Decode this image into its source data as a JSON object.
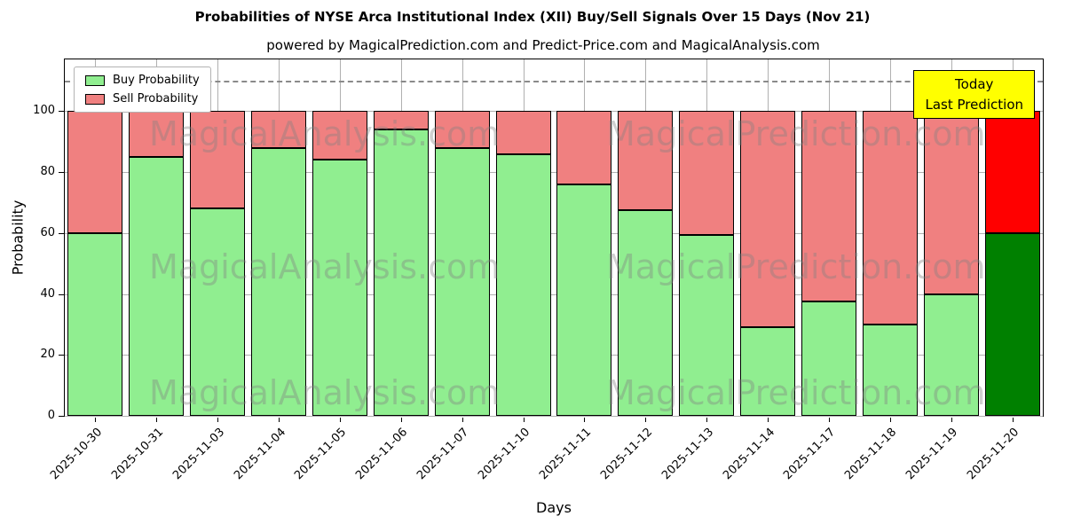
{
  "title": "Probabilities of NYSE Arca Institutional Index (XII) Buy/Sell Signals Over 15 Days (Nov 21)",
  "subtitle": "powered by MagicalPrediction.com and Predict-Price.com and MagicalAnalysis.com",
  "annotation": {
    "line1": "Today",
    "line2": "Last Prediction"
  },
  "legend": [
    {
      "label": "Buy Probability",
      "color": "#90ee90"
    },
    {
      "label": "Sell Probability",
      "color": "#f08080"
    }
  ],
  "watermarks": [
    "MagicalAnalysis.com",
    "MagicalPrediction.com"
  ],
  "chart_data": {
    "type": "bar",
    "stacked": true,
    "title": "Probabilities of NYSE Arca Institutional Index (XII) Buy/Sell Signals Over 15 Days (Nov 21)",
    "xlabel": "Days",
    "ylabel": "Probability",
    "ylim": [
      0,
      117
    ],
    "yticks": [
      0,
      20,
      40,
      60,
      80,
      100
    ],
    "dashed_line_y": 110,
    "grid": true,
    "legend_position": "upper left",
    "categories": [
      "2025-10-30",
      "2025-10-31",
      "2025-11-03",
      "2025-11-04",
      "2025-11-05",
      "2025-11-06",
      "2025-11-07",
      "2025-11-10",
      "2025-11-11",
      "2025-11-12",
      "2025-11-13",
      "2025-11-14",
      "2025-11-17",
      "2025-11-18",
      "2025-11-19",
      "2025-11-20"
    ],
    "series": [
      {
        "name": "Buy Probability",
        "color": "#90ee90",
        "last_bar_color": "#008000",
        "values": [
          60,
          85,
          68,
          88,
          84,
          94,
          88,
          86,
          76,
          67.5,
          59.5,
          29,
          37.5,
          30,
          40,
          60
        ]
      },
      {
        "name": "Sell Probability",
        "color": "#f08080",
        "last_bar_color": "#ff0000",
        "values": [
          40,
          15,
          32,
          12,
          16,
          6,
          12,
          14,
          24,
          32.5,
          40.5,
          71,
          62.5,
          70,
          60,
          40
        ]
      }
    ]
  }
}
